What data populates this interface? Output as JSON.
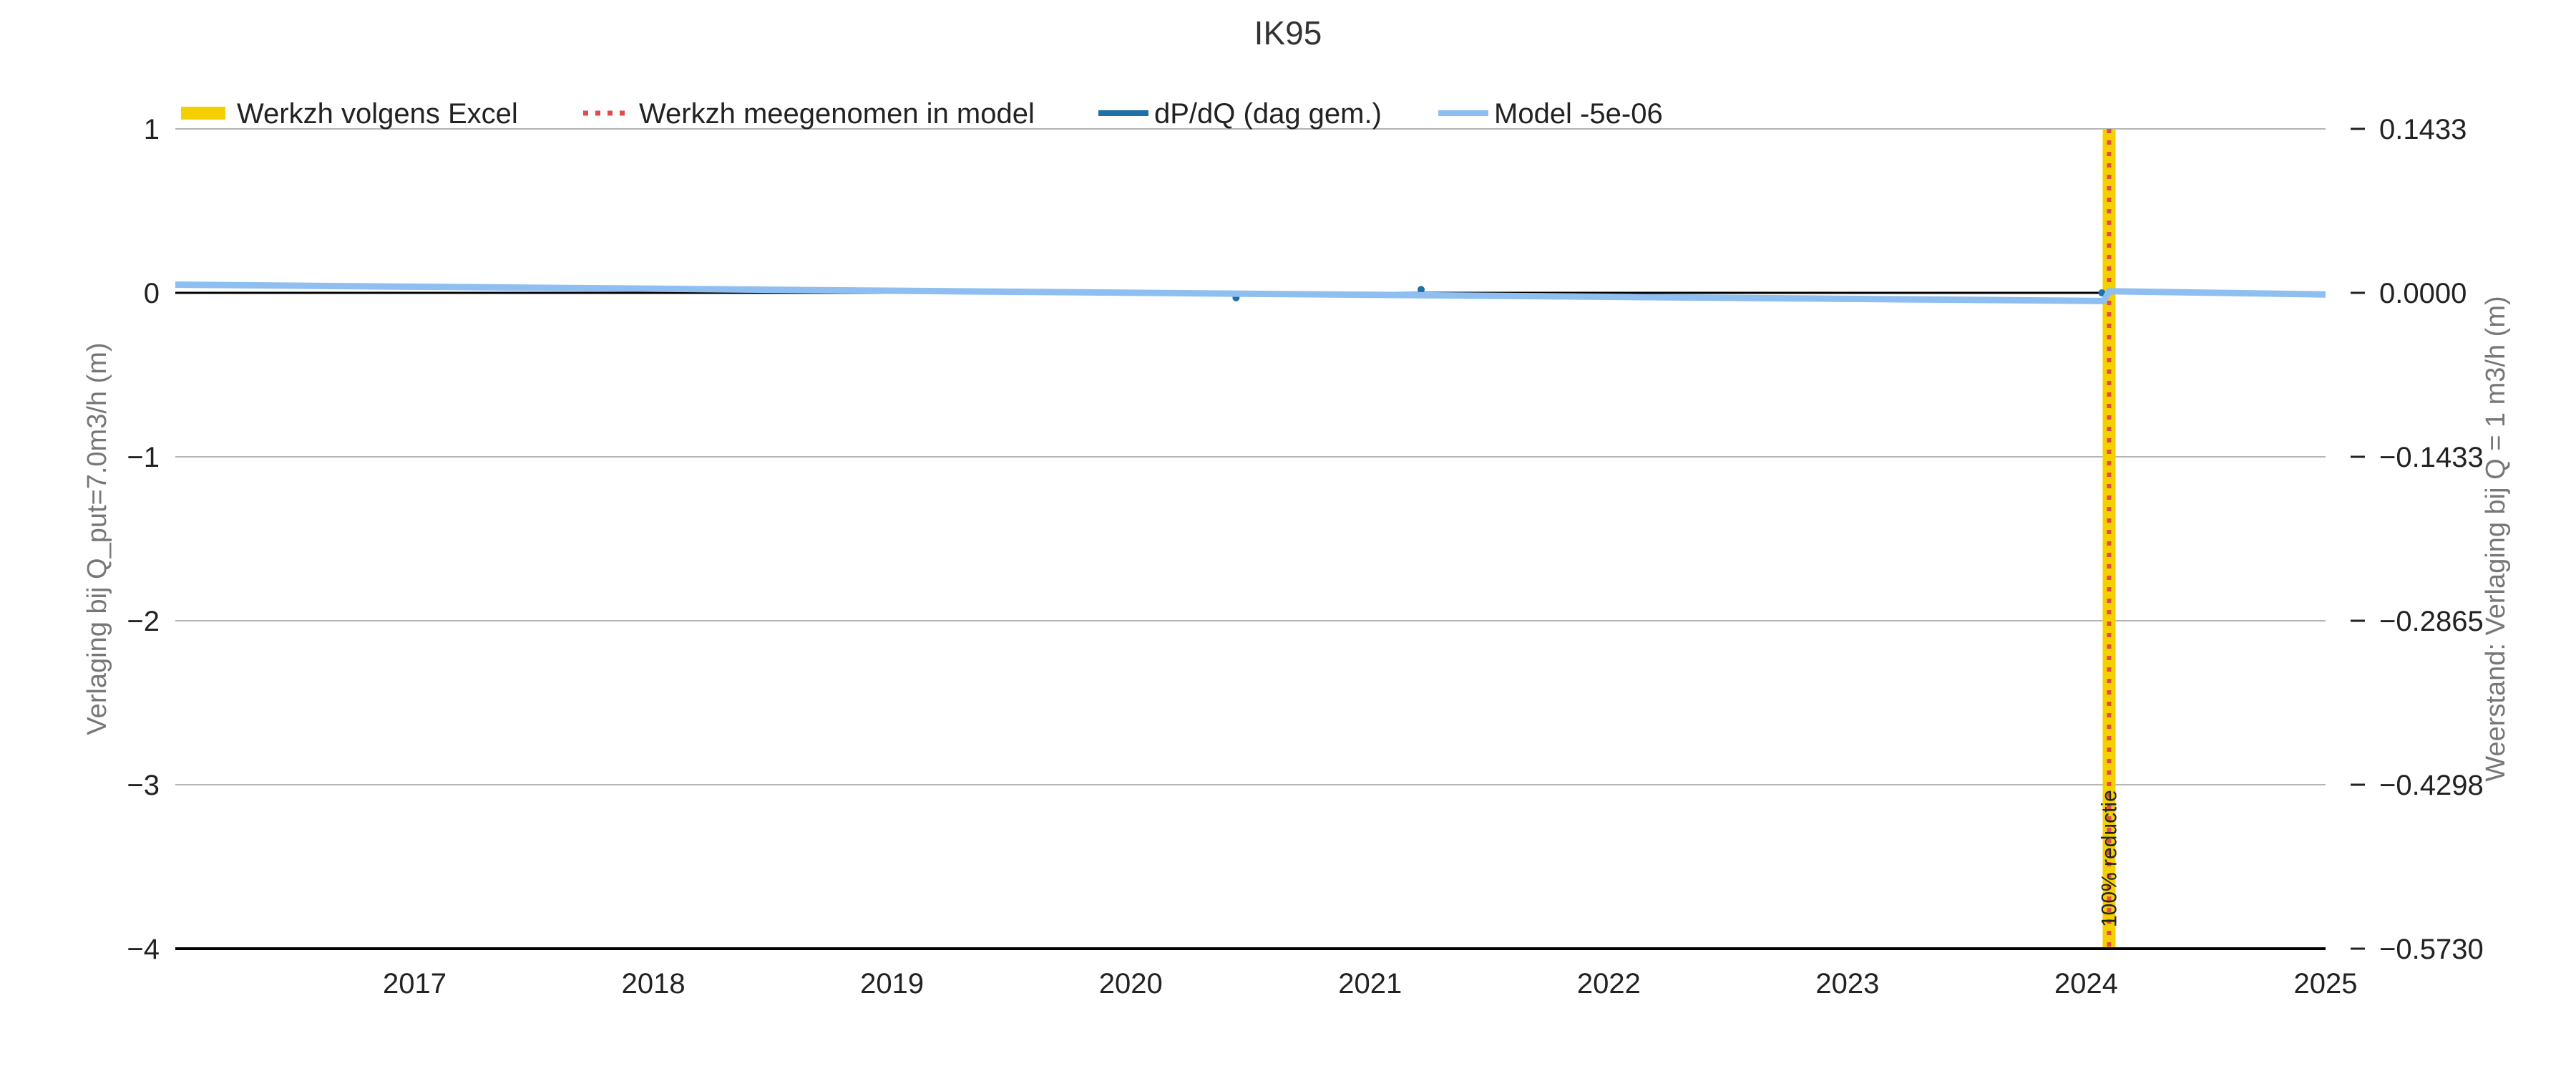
{
  "chart_data": {
    "type": "line",
    "title": "IK95",
    "ylabel_left": "Verlaging bij Q_put=7.0m3/h (m)",
    "ylabel_right": "Weerstand: Verlaging bij Q = 1 m3/h (m)",
    "xlabel": "",
    "xlim": [
      "2016-01-01",
      "2025-01-01"
    ],
    "ylim_left": [
      -4,
      1
    ],
    "ylim_right": [
      -0.573,
      0.1433
    ],
    "x_ticks": [
      "2017",
      "2018",
      "2019",
      "2020",
      "2021",
      "2022",
      "2023",
      "2024",
      "2025"
    ],
    "y_ticks_left": [
      "1",
      "0",
      "−1",
      "−2",
      "−3",
      "−4"
    ],
    "y_ticks_right": [
      "0.1433",
      "0.0000",
      "−0.1433",
      "−0.2865",
      "−0.4298",
      "−0.5730"
    ],
    "grid": true,
    "legend_position": "top-left",
    "legend": [
      {
        "label": "Werkzh volgens Excel",
        "color": "#f5d000",
        "style": "band"
      },
      {
        "label": "Werkzh meegenomen in model",
        "color": "#e04c4c",
        "style": "dotted"
      },
      {
        "label": "dP/dQ (dag gem.)",
        "color": "#1f6fa8",
        "style": "solid"
      },
      {
        "label": "Model -5e-06",
        "color": "#8fbff0",
        "style": "solid"
      }
    ],
    "series": [
      {
        "name": "dP/dQ (dag gem.)",
        "color": "#1f6fa8",
        "points": [
          {
            "x": "2020-06-10",
            "y": -0.03
          },
          {
            "x": "2021-03-20",
            "y": 0.02
          },
          {
            "x": "2024-01-25",
            "y": 0.0
          }
        ]
      },
      {
        "name": "Model -5e-06",
        "color": "#8fbff0",
        "points": [
          {
            "x": "2016-01-01",
            "y": 0.05
          },
          {
            "x": "2024-01-28",
            "y": -0.05
          },
          {
            "x": "2024-02-05",
            "y": 0.01
          },
          {
            "x": "2025-01-01",
            "y": -0.01
          }
        ]
      }
    ],
    "work_events": [
      {
        "date": "2024-02-05",
        "label": "100% reductie",
        "band_color": "#f5d000",
        "line_color": "#e04c4c"
      }
    ],
    "zero_line": true
  }
}
